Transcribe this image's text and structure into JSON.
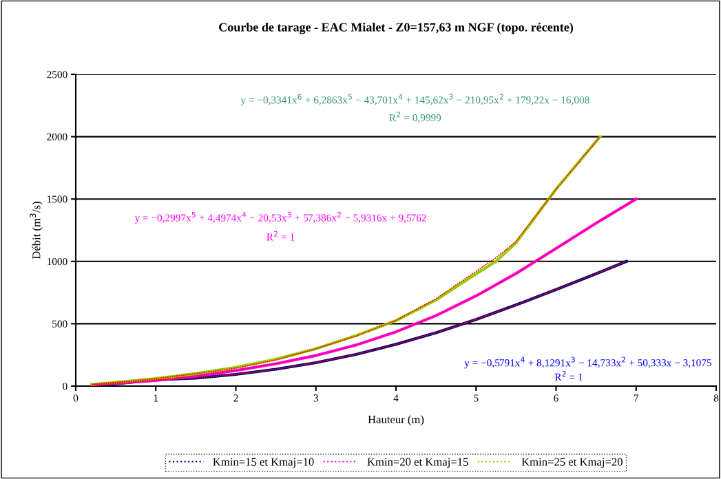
{
  "chart_data": {
    "type": "line",
    "title": "Courbe de tarage - EAC Mialet - Z0=157,63 m NGF (topo. récente)",
    "xlabel": "Hauteur (m)",
    "ylabel": "Débit (m$^{3}$/s)",
    "xlim": [
      0,
      8
    ],
    "xticks": [
      0,
      1,
      2,
      3,
      4,
      5,
      6,
      7,
      8
    ],
    "ylim": [
      0,
      2500
    ],
    "yticks": [
      0,
      500,
      1000,
      1500,
      2000,
      2500
    ],
    "grid": "y",
    "legend": "bottom",
    "marker": "none",
    "line_style": "solid",
    "series": [
      {
        "name": "Kmin=15 et Kmaj=10",
        "color": "#000080",
        "x": [
          0.2,
          0.5,
          1,
          1.5,
          2,
          2.5,
          3,
          3.5,
          4,
          4.5,
          5,
          5.5,
          6,
          6.5,
          6.88
        ],
        "values": [
          7,
          19,
          50,
          64,
          94,
          135,
          188,
          254,
          335,
          428,
          534,
          651,
          774,
          901,
          1000
        ]
      },
      {
        "name": "Kmin=20 et Kmaj=15",
        "color": "#ff00ff",
        "x": [
          0.2,
          0.5,
          1,
          1.5,
          2,
          2.5,
          3,
          3.5,
          4,
          4.5,
          5,
          5.5,
          6,
          6.5,
          7
        ],
        "values": [
          11,
          22,
          45,
          81,
          125,
          179,
          245,
          329,
          435,
          565,
          723,
          903,
          1104,
          1306,
          1500
        ]
      },
      {
        "name": "Kmin=25 et Kmaj=20",
        "color": "#99cc00",
        "x": [
          0.2,
          0.5,
          1,
          1.5,
          2,
          2.5,
          3,
          3.5,
          4,
          4.5,
          5,
          5.25,
          5.5,
          6,
          6.55
        ],
        "values": [
          14,
          30,
          60,
          100,
          150,
          215,
          300,
          405,
          525,
          690,
          900,
          1000,
          1150,
          1580,
          2000
        ]
      },
      {
        "type": "line",
        "line_style": "dotted",
        "color": "#ff0000",
        "x": [
          0.2,
          0.5,
          1,
          1.5,
          2,
          2.5,
          3,
          3.5,
          4,
          4.5,
          5,
          5.5,
          6,
          6.5,
          6.88
        ],
        "values": [
          7,
          19,
          50,
          64,
          94,
          135,
          188,
          254,
          335,
          428,
          534,
          651,
          774,
          901,
          1000
        ]
      },
      {
        "type": "line",
        "line_style": "dotted",
        "color": "#ff0000",
        "x": [
          0.2,
          0.5,
          1,
          1.5,
          2,
          2.5,
          3,
          3.5,
          4,
          4.5,
          5,
          5.5,
          6,
          6.5,
          7
        ],
        "values": [
          11,
          22,
          45,
          81,
          125,
          179,
          245,
          329,
          435,
          565,
          723,
          903,
          1104,
          1306,
          1500
        ]
      },
      {
        "type": "line",
        "line_style": "dotted",
        "color": "#ff0000",
        "x": [
          0.2,
          0.5,
          1,
          1.5,
          2,
          2.5,
          3,
          3.5,
          4,
          4.5,
          5,
          5.25,
          5.5,
          6,
          6.55
        ],
        "values": [
          14,
          30,
          60,
          100,
          144,
          210,
          299,
          400,
          527,
          700,
          920,
          1030,
          1160,
          1577,
          2000
        ]
      }
    ],
    "annotations": [
      "y = −0,3341x$^{6}$ + 6,2863x$^{5}$ − 43,701x$^{4}$ + 145,62x$^{3}$ − 210,95x$^{2}$ + 179,22x − 16,008",
      "R$^{2}$ = 0,9999",
      "y = −0,2997x$^{5}$ + 4,4974x$^{4}$ − 20,53x$^{3}$ + 57,386x$^{2}$ − 5,9316x + 9,5762",
      "R$^{2}$ = 1",
      "y = −0,5791x$^{4}$ + 8,1291x$^{3}$ − 14,733x$^{2}$ + 50,333x − 3,1075",
      "R$^{2}$ = 1"
    ]
  }
}
